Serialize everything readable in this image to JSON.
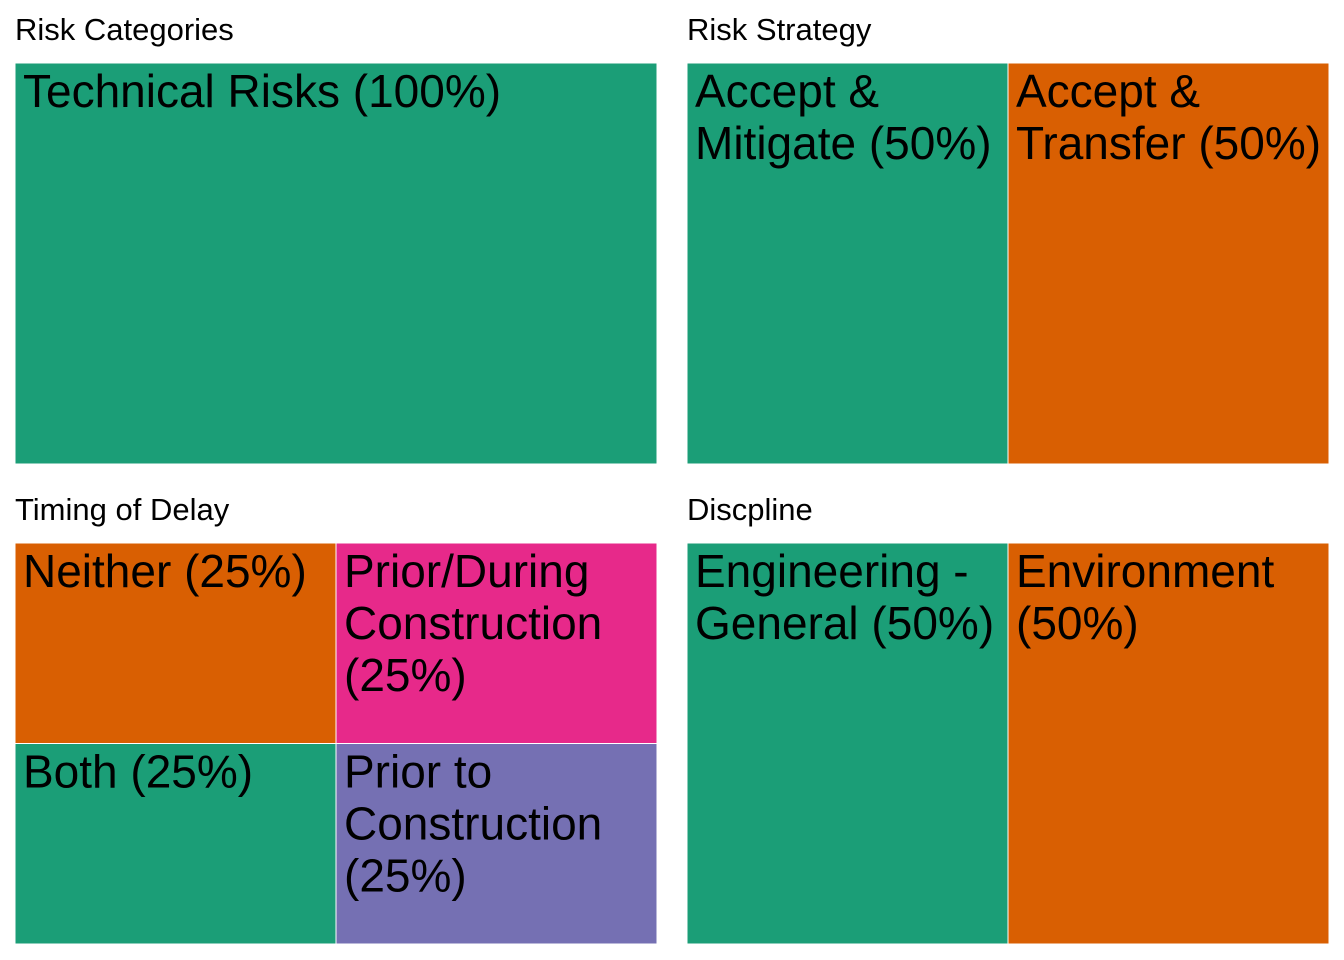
{
  "chart_data": [
    {
      "type": "treemap",
      "title": "Risk Categories",
      "items": [
        {
          "label": "Technical Risks (100%)",
          "value": 100,
          "color": "#1b9e77"
        }
      ]
    },
    {
      "type": "treemap",
      "title": "Risk Strategy",
      "items": [
        {
          "label": "Accept & Mitigate (50%)",
          "value": 50,
          "color": "#1b9e77"
        },
        {
          "label": "Accept & Transfer (50%)",
          "value": 50,
          "color": "#d95f02"
        }
      ]
    },
    {
      "type": "treemap",
      "title": "Timing of Delay",
      "items": [
        {
          "label": "Neither (25%)",
          "value": 25,
          "color": "#d95f02"
        },
        {
          "label": "Both (25%)",
          "value": 25,
          "color": "#1b9e77"
        },
        {
          "label": "Prior/During Construction (25%)",
          "value": 25,
          "color": "#e7298a"
        },
        {
          "label": "Prior to Construction (25%)",
          "value": 25,
          "color": "#7570b3"
        }
      ]
    },
    {
      "type": "treemap",
      "title": "Discpline",
      "items": [
        {
          "label": "Engineering - General (50%)",
          "value": 50,
          "color": "#1b9e77"
        },
        {
          "label": "Environment (50%)",
          "value": 50,
          "color": "#d95f02"
        }
      ]
    }
  ]
}
